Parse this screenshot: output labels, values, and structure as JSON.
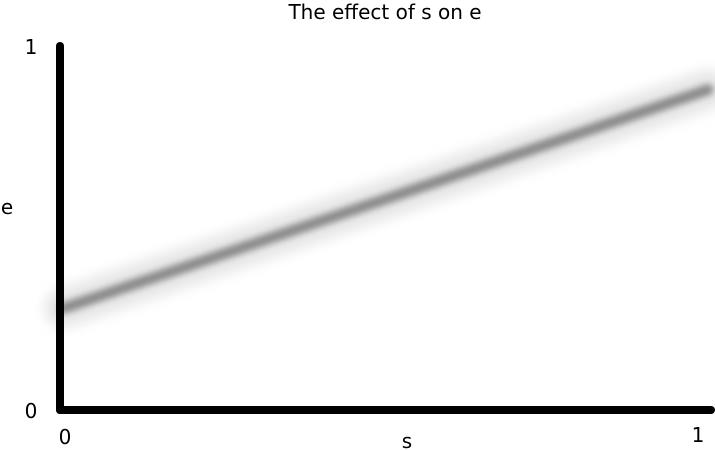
{
  "chart_data": {
    "type": "line",
    "title": "The effect of s on e",
    "xlabel": "s",
    "ylabel": "e",
    "xlim": [
      0,
      1
    ],
    "ylim": [
      0,
      1
    ],
    "x_ticks": [
      "0",
      "1"
    ],
    "y_ticks": [
      "0",
      "1"
    ],
    "grid": false,
    "series": [
      {
        "x": [
          0,
          0.1,
          0.2,
          0.3,
          0.4,
          0.5,
          0.6,
          0.7,
          0.8,
          0.9,
          1.0
        ],
        "values": [
          0.28,
          0.34,
          0.4,
          0.46,
          0.52,
          0.58,
          0.64,
          0.7,
          0.76,
          0.82,
          0.88
        ],
        "color": "#8a8a8a"
      }
    ]
  }
}
